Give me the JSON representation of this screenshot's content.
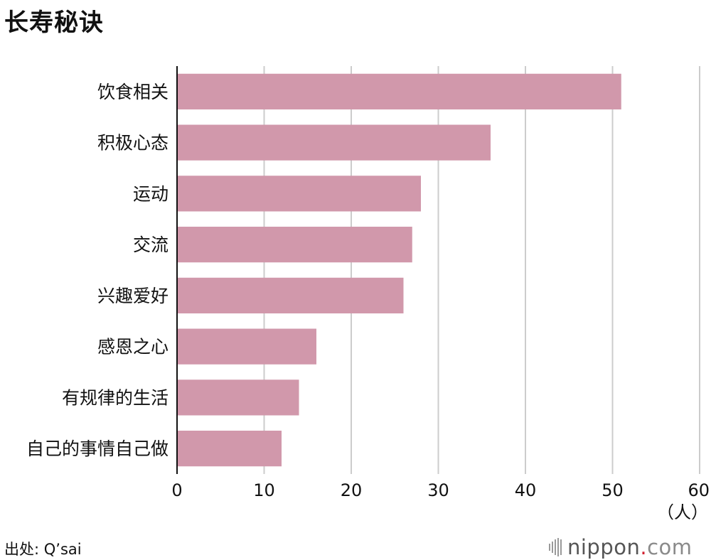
{
  "title": "长寿秘诀",
  "source": "出处: Q’sai",
  "brand": {
    "name": "nippon",
    "dot": ".",
    "tld": "com"
  },
  "colors": {
    "bar": "#d198ab",
    "grid": "#cccccc",
    "axis": "#111111"
  },
  "chart_data": {
    "type": "bar",
    "orientation": "horizontal",
    "title": "长寿秘诀",
    "categories": [
      "饮食相关",
      "积极心态",
      "运动",
      "交流",
      "兴趣爱好",
      "感恩之心",
      "有规律的生活",
      "自己的事情自己做"
    ],
    "values": [
      51,
      36,
      28,
      27,
      26,
      16,
      14,
      12
    ],
    "xlim": [
      0,
      60
    ],
    "xticks": [
      "0",
      "10",
      "20",
      "30",
      "40",
      "50",
      "60"
    ],
    "xunit": "（人）",
    "grid": true
  }
}
